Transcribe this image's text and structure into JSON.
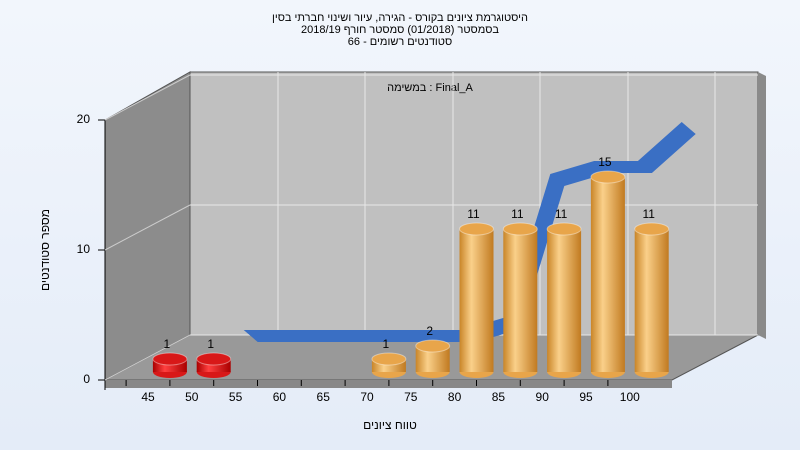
{
  "chart_data": {
    "type": "bar3d",
    "title": [
      "היסטוגרמת ציונים בקורס - הגירה, עיור ושינוי חברתי בסין",
      "בסמסטר  (01/2018)  סמסטר חורף 2018/19",
      "סטודנטים רשומים - 66"
    ],
    "annotation": "במשימה : Final_A",
    "x_label": "טווח ציונים",
    "y_label": "מספר סטודנטים",
    "categories": [
      "45",
      "50",
      "55",
      "60",
      "65",
      "70",
      "75",
      "80",
      "85",
      "90",
      "95",
      "100"
    ],
    "values": [
      1,
      1,
      0,
      0,
      0,
      1,
      2,
      11,
      11,
      11,
      15,
      11
    ],
    "colors": [
      "#d81818",
      "#d81818",
      "#e8a54a",
      "#e8a54a",
      "#e8a54a",
      "#e8a54a",
      "#e8a54a",
      "#e8a54a",
      "#e8a54a",
      "#e8a54a",
      "#e8a54a",
      "#e8a54a"
    ],
    "curve": {
      "color": "#3a6fc4",
      "values": [
        null,
        0,
        0,
        0,
        0,
        0,
        0,
        1,
        12,
        13,
        13,
        16
      ]
    },
    "ylim": [
      0,
      20
    ],
    "yticks": [
      0,
      10,
      20
    ],
    "grid": true
  }
}
